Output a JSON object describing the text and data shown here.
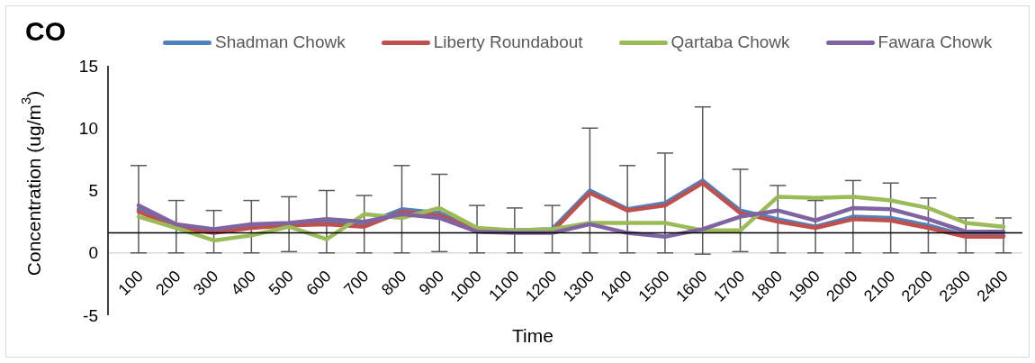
{
  "chart_data": {
    "type": "line",
    "title": "CO",
    "xlabel": "Time",
    "ylabel": "Concentration (ug/m$^{3}$)",
    "categories": [
      "100",
      "200",
      "300",
      "400",
      "500",
      "600",
      "700",
      "800",
      "900",
      "1000",
      "1100",
      "1200",
      "1300",
      "1400",
      "1500",
      "1600",
      "1700",
      "1800",
      "1900",
      "2000",
      "2100",
      "2200",
      "2300",
      "2400"
    ],
    "series": [
      {
        "name": "Shadman Chowk",
        "color": "#4f81bd",
        "values": [
          3.5,
          2.1,
          1.7,
          2.1,
          2.3,
          2.5,
          2.3,
          3.5,
          3.2,
          1.9,
          1.8,
          1.9,
          5.0,
          3.5,
          4.0,
          5.8,
          3.4,
          2.7,
          2.1,
          2.9,
          2.8,
          2.2,
          1.4,
          1.4
        ],
        "errors": [
          3.5,
          2.1,
          1.7,
          2.1,
          2.2,
          2.5,
          2.3,
          3.5,
          3.1,
          1.9,
          1.8,
          1.9,
          5.0,
          3.5,
          4.0,
          5.9,
          3.3,
          2.7,
          2.1,
          2.9,
          2.8,
          2.2,
          1.4,
          1.4
        ]
      },
      {
        "name": "Liberty Roundabout",
        "color": "#c0504d",
        "values": [
          3.3,
          2.0,
          1.6,
          2.0,
          2.2,
          2.3,
          2.1,
          3.3,
          3.0,
          1.8,
          1.7,
          1.7,
          4.8,
          3.4,
          3.8,
          5.6,
          3.2,
          2.5,
          2.0,
          2.7,
          2.6,
          2.0,
          1.3,
          1.3
        ]
      },
      {
        "name": "Qartaba Chowk",
        "color": "#9bbb59",
        "values": [
          2.9,
          2.0,
          1.0,
          1.4,
          2.1,
          1.1,
          3.1,
          2.8,
          3.6,
          2.0,
          1.8,
          1.9,
          2.4,
          2.4,
          2.4,
          1.8,
          1.8,
          4.5,
          4.4,
          4.5,
          4.2,
          3.6,
          2.4,
          2.1
        ]
      },
      {
        "name": "Fawara Chowk",
        "color": "#8064a2",
        "values": [
          3.8,
          2.3,
          1.9,
          2.3,
          2.4,
          2.7,
          2.5,
          3.1,
          2.8,
          1.7,
          1.6,
          1.6,
          2.3,
          1.6,
          1.3,
          1.9,
          2.9,
          3.4,
          2.6,
          3.6,
          3.5,
          2.7,
          1.7,
          1.7
        ]
      }
    ],
    "ylim": [
      -5,
      15
    ],
    "yticks": [
      -5,
      0,
      5,
      10,
      15
    ],
    "legend": "top",
    "ref_lines": [
      {
        "axis": "y",
        "value": 1.6,
        "color": "#000000"
      }
    ]
  }
}
